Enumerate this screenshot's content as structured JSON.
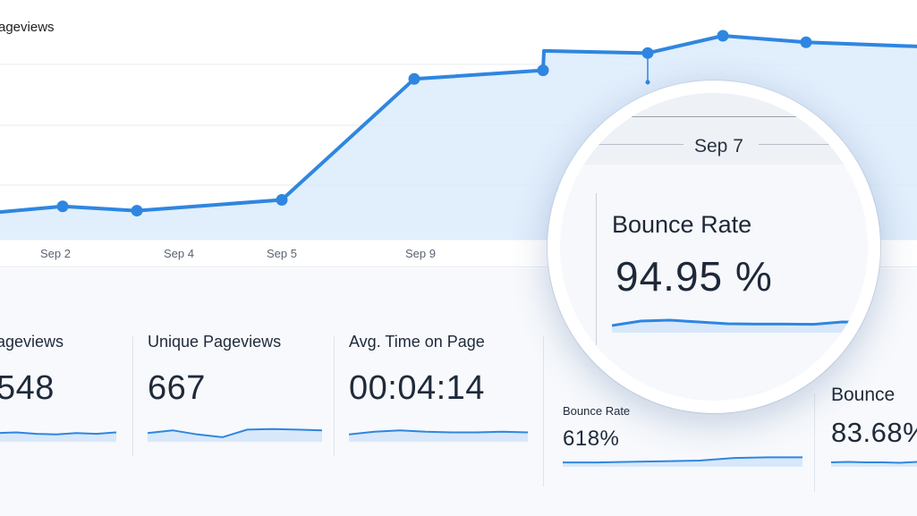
{
  "chart": {
    "title": "ageviews",
    "ticks": [
      "Sep 2",
      "Sep 4",
      "Sep 5",
      "Sep 9"
    ],
    "accent": "#2f86e0",
    "fill": "#dcebfb"
  },
  "chart_data": {
    "type": "area",
    "title": "ageviews",
    "x": [
      "",
      "Sep 2",
      "Sep 4",
      "Sep 5",
      "",
      "",
      "Sep 9",
      "Sep 7",
      "",
      "",
      ""
    ],
    "series": [
      {
        "values": [
          0.18,
          0.21,
          0.19,
          0.24,
          0.8,
          0.84,
          0.93,
          0.92,
          1.0,
          0.97,
          0.95
        ]
      }
    ],
    "grid": true
  },
  "metrics": [
    {
      "label": "ageviews",
      "value": "548",
      "spark": [
        0.5,
        0.55,
        0.45,
        0.4,
        0.5,
        0.45,
        0.55
      ]
    },
    {
      "label": "Unique Pageviews",
      "value": "667",
      "spark": [
        0.5,
        0.7,
        0.4,
        0.2,
        0.75,
        0.8,
        0.75,
        0.7
      ]
    },
    {
      "label": "Avg. Time on Page",
      "value": "00:04:14",
      "spark": [
        0.4,
        0.6,
        0.7,
        0.6,
        0.55,
        0.55,
        0.6,
        0.55
      ]
    }
  ],
  "small_metrics": [
    {
      "label": "Bounce Rate",
      "value": "618%",
      "spark": [
        0.2,
        0.2,
        0.25,
        0.3,
        0.35,
        0.55,
        0.6,
        0.6
      ]
    },
    {
      "label": "Bounce",
      "value": "83.68%",
      "spark": [
        0.3,
        0.35,
        0.3,
        0.3,
        0.25,
        0.35
      ]
    }
  ],
  "magnifier": {
    "date": "Sep 7",
    "label": "Bounce Rate",
    "value": "94.95 %",
    "spark": [
      0.3,
      0.55,
      0.6,
      0.5,
      0.4,
      0.38,
      0.38,
      0.37,
      0.5,
      0.48
    ]
  }
}
